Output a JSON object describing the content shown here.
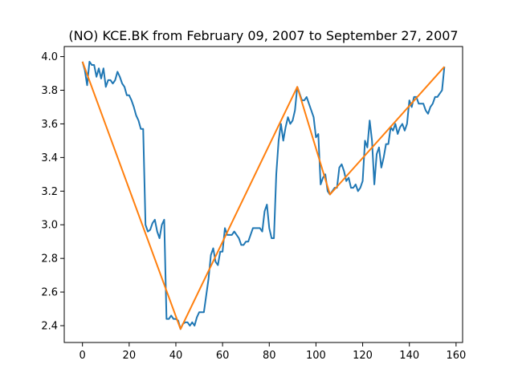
{
  "chart_data": {
    "type": "line",
    "title": "(NO) KCE.BK from February 09, 2007 to September 27, 2007",
    "xlabel": "",
    "ylabel": "",
    "xlim": [
      -7.8,
      162.8
    ],
    "ylim": [
      2.3,
      4.06
    ],
    "xticks": [
      0,
      20,
      40,
      60,
      80,
      100,
      120,
      140,
      160
    ],
    "yticks": [
      2.4,
      2.6,
      2.8,
      3.0,
      3.2,
      3.4,
      3.6,
      3.8,
      4.0
    ],
    "ytick_labels": [
      "2.4",
      "2.6",
      "2.8",
      "3.0",
      "3.2",
      "3.4",
      "3.6",
      "3.8",
      "4.0"
    ],
    "grid": false,
    "series": [
      {
        "color": "#1f77b4",
        "x": [
          0,
          1,
          2,
          3,
          4,
          5,
          6,
          7,
          8,
          9,
          10,
          11,
          12,
          13,
          14,
          15,
          16,
          17,
          18,
          19,
          20,
          21,
          22,
          23,
          24,
          25,
          26,
          27,
          28,
          29,
          30,
          31,
          32,
          33,
          34,
          35,
          36,
          37,
          38,
          39,
          40,
          41,
          42,
          43,
          44,
          45,
          46,
          47,
          48,
          49,
          50,
          51,
          52,
          53,
          54,
          55,
          56,
          57,
          58,
          59,
          60,
          61,
          62,
          63,
          64,
          65,
          66,
          67,
          68,
          69,
          70,
          71,
          72,
          73,
          74,
          75,
          76,
          77,
          78,
          79,
          80,
          81,
          82,
          83,
          84,
          85,
          86,
          87,
          88,
          89,
          90,
          91,
          92,
          93,
          94,
          95,
          96,
          97,
          98,
          99,
          100,
          101,
          102,
          103,
          104,
          105,
          106,
          107,
          108,
          109,
          110,
          111,
          112,
          113,
          114,
          115,
          116,
          117,
          118,
          119,
          120,
          121,
          122,
          123,
          124,
          125,
          126,
          127,
          128,
          129,
          130,
          131,
          132,
          133,
          134,
          135,
          136,
          137,
          138,
          139,
          140,
          141,
          142,
          143,
          144,
          145,
          146,
          147,
          148,
          149,
          150,
          151,
          152,
          153,
          154,
          155
        ],
        "y": [
          3.97,
          3.92,
          3.83,
          3.97,
          3.95,
          3.95,
          3.88,
          3.93,
          3.87,
          3.93,
          3.82,
          3.86,
          3.86,
          3.84,
          3.86,
          3.91,
          3.88,
          3.84,
          3.82,
          3.77,
          3.77,
          3.74,
          3.7,
          3.65,
          3.62,
          3.57,
          3.57,
          3.0,
          2.96,
          2.97,
          3.01,
          3.03,
          2.96,
          2.92,
          3.0,
          3.03,
          2.44,
          2.44,
          2.46,
          2.44,
          2.44,
          2.43,
          2.38,
          2.41,
          2.42,
          2.42,
          2.4,
          2.42,
          2.4,
          2.45,
          2.48,
          2.48,
          2.48,
          2.58,
          2.68,
          2.82,
          2.86,
          2.78,
          2.76,
          2.84,
          2.84,
          2.98,
          2.94,
          2.94,
          2.94,
          2.96,
          2.94,
          2.92,
          2.88,
          2.88,
          2.9,
          2.9,
          2.94,
          2.98,
          2.98,
          2.98,
          2.98,
          2.96,
          3.08,
          3.12,
          2.98,
          2.92,
          2.92,
          3.3,
          3.5,
          3.6,
          3.5,
          3.58,
          3.64,
          3.6,
          3.62,
          3.68,
          3.82,
          3.78,
          3.74,
          3.74,
          3.76,
          3.72,
          3.68,
          3.64,
          3.52,
          3.54,
          3.24,
          3.28,
          3.3,
          3.2,
          3.18,
          3.2,
          3.22,
          3.22,
          3.34,
          3.36,
          3.32,
          3.26,
          3.28,
          3.22,
          3.22,
          3.24,
          3.2,
          3.22,
          3.26,
          3.5,
          3.46,
          3.62,
          3.5,
          3.24,
          3.42,
          3.46,
          3.34,
          3.4,
          3.48,
          3.48,
          3.58,
          3.56,
          3.6,
          3.54,
          3.58,
          3.6,
          3.56,
          3.6,
          3.74,
          3.7,
          3.76,
          3.76,
          3.72,
          3.72,
          3.72,
          3.68,
          3.66,
          3.7,
          3.72,
          3.76,
          3.76,
          3.78,
          3.8,
          3.94
        ]
      },
      {
        "color": "#ff7f0e",
        "x": [
          0,
          42,
          92,
          106,
          155
        ],
        "y": [
          3.97,
          2.38,
          3.82,
          3.18,
          3.94
        ]
      }
    ]
  }
}
